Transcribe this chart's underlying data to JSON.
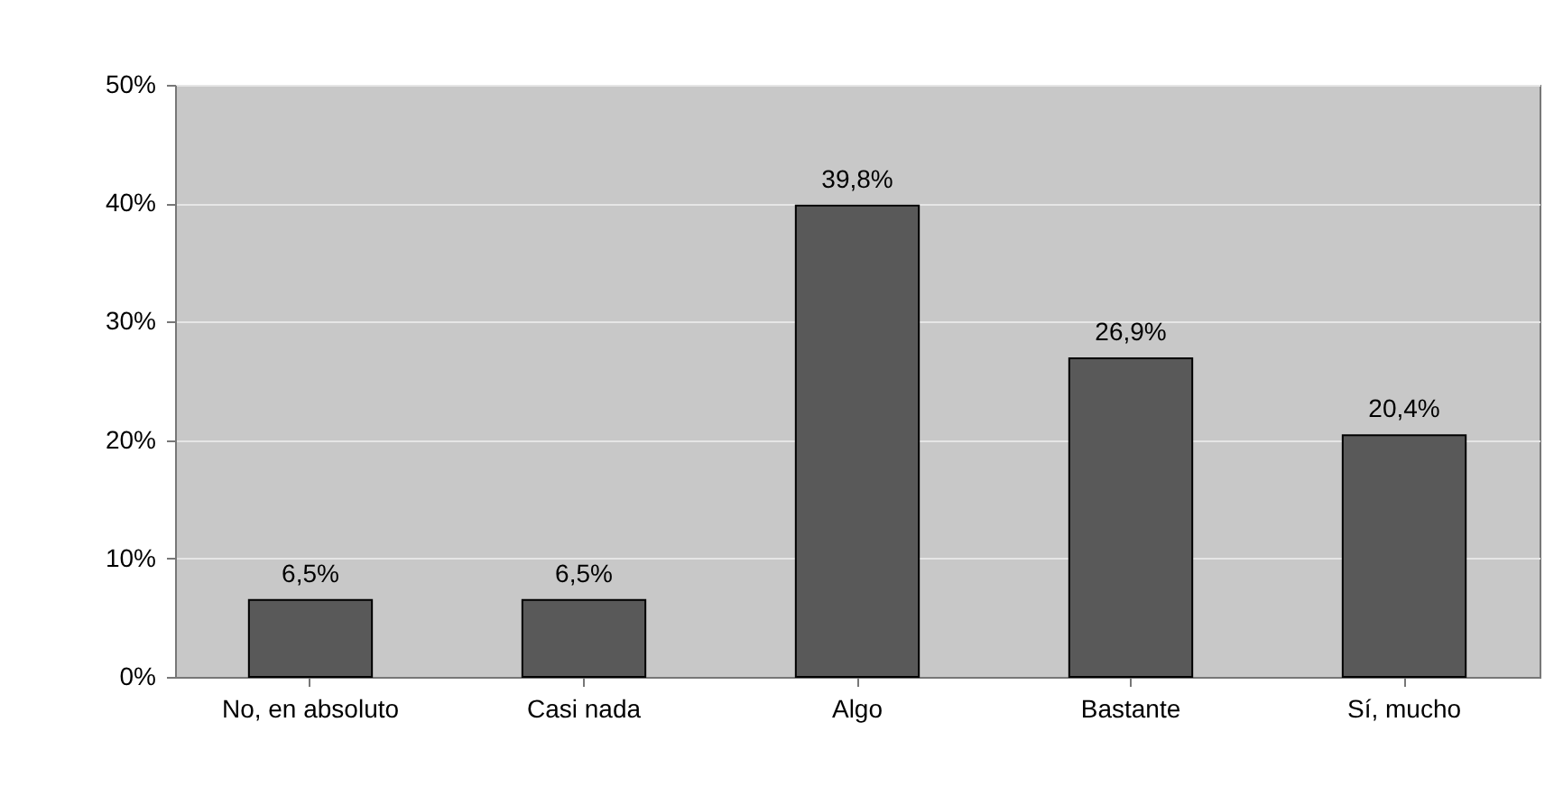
{
  "chart_data": {
    "type": "bar",
    "categories": [
      "No, en absoluto",
      "Casi nada",
      "Algo",
      "Bastante",
      "Sí, mucho"
    ],
    "values": [
      6.5,
      6.5,
      39.8,
      26.9,
      20.4
    ],
    "value_labels": [
      "6,5%",
      "6,5%",
      "39,8%",
      "26,9%",
      "20,4%"
    ],
    "color": "#595959",
    "ylim": [
      0,
      50
    ],
    "yticks": [
      {
        "value": 0,
        "label": "0%"
      },
      {
        "value": 10,
        "label": "10%"
      },
      {
        "value": 20,
        "label": "20%"
      },
      {
        "value": 30,
        "label": "30%"
      },
      {
        "value": 40,
        "label": "40%"
      },
      {
        "value": 50,
        "label": "50%"
      }
    ],
    "grid": "y"
  }
}
